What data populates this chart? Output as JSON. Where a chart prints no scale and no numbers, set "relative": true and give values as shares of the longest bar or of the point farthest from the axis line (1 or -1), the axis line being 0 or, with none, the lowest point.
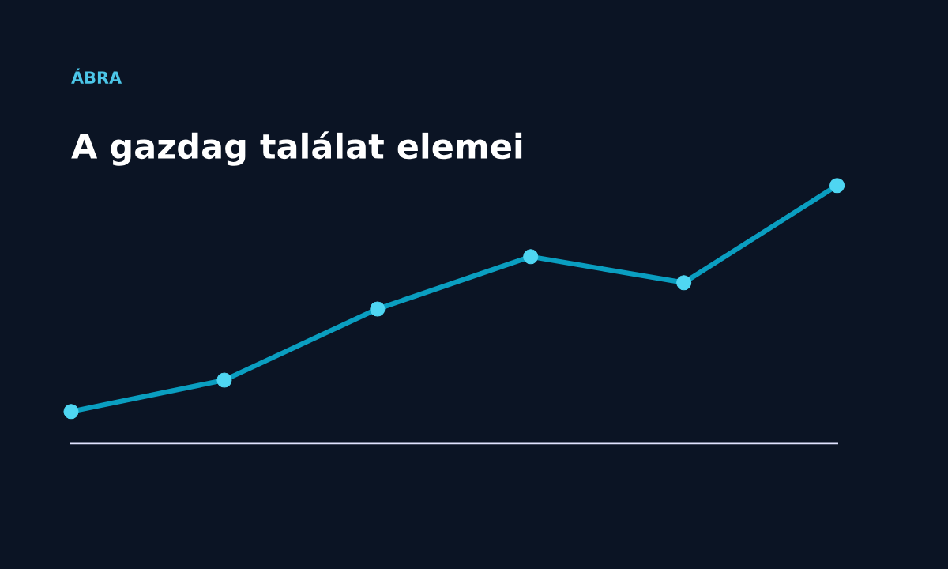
{
  "chart_data": {
    "type": "line",
    "title": "A gazdag találat elemei",
    "subtitle": "ÁBRA",
    "categories": [
      null,
      null,
      null,
      null,
      null,
      null
    ],
    "series": [
      {
        "color": "#0a9ec0",
        "values": [
          0.123,
          0.245,
          0.521,
          0.724,
          0.623,
          1.0
        ]
      }
    ],
    "relative": true,
    "marker": "circle",
    "line_style": "solid",
    "grid": false,
    "legend": false
  }
}
